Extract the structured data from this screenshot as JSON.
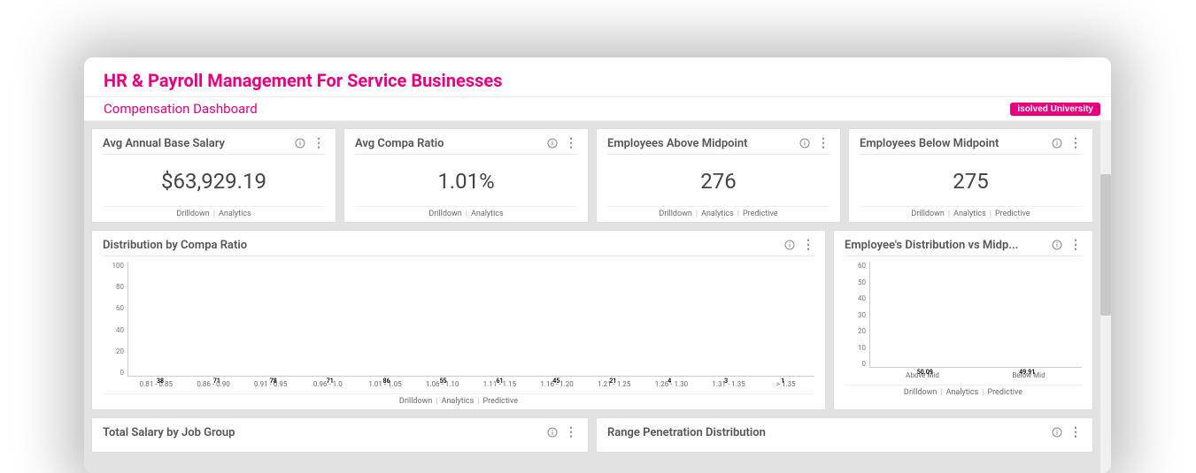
{
  "page_title": "HR & Payroll Management For Service Businesses",
  "sub_title": "Compensation Dashboard",
  "badge": "isolved University",
  "kpi_cards": [
    {
      "title": "Avg Annual Base Salary",
      "value": "$63,929.19",
      "links": [
        "Drilldown",
        "Analytics"
      ]
    },
    {
      "title": "Avg Compa Ratio",
      "value": "1.01%",
      "links": [
        "Drilldown",
        "Analytics"
      ]
    },
    {
      "title": "Employees Above Midpoint",
      "value": "276",
      "links": [
        "Drilldown",
        "Analytics",
        "Predictive"
      ]
    },
    {
      "title": "Employees Below Midpoint",
      "value": "275",
      "links": [
        "Drilldown",
        "Analytics",
        "Predictive"
      ]
    }
  ],
  "compa_chart": {
    "title": "Distribution by Compa Ratio",
    "ymax": 100,
    "yticks": [
      "100",
      "80",
      "60",
      "40",
      "20",
      "0"
    ],
    "categories": [
      "0.81 - 0.85",
      "0.86 - 0.90",
      "0.91 - 0.95",
      "0.96 - 1.0",
      "1.01 - 1.05",
      "1.06 - 1.10",
      "1.11 - 1.15",
      "1.16 - 1.20",
      "1.21 - 1.25",
      "1.26 - 1.30",
      "1.31 - 1.35",
      "> 1.35"
    ],
    "values": [
      38,
      71,
      78,
      71,
      86,
      55,
      61,
      45,
      21,
      4,
      3,
      1
    ],
    "value_labels": [
      "38",
      "71",
      "78",
      "71",
      "86",
      "55",
      "61",
      "45",
      "21",
      "4",
      "3",
      "1"
    ],
    "colors": [
      "#1f3ea8",
      "#c98b0a",
      "#0f8ba3",
      "#e6007e",
      "#b8b8b8",
      "#0f8ba3",
      "#8a6aa8",
      "#0f8ba3",
      "#b86b1f",
      "#2a2a4a",
      "#2a2a4a",
      "#6a6a6a"
    ],
    "foot_links": [
      "Drilldown",
      "Analytics",
      "Predictive"
    ]
  },
  "midpoint_chart": {
    "title": "Employee's Distribution vs Midp...",
    "ymax": 60,
    "yticks": [
      "60",
      "50",
      "40",
      "30",
      "20",
      "10",
      "0"
    ],
    "categories": [
      "Above Mid",
      "Below Mid"
    ],
    "values": [
      50.09,
      49.91
    ],
    "value_labels": [
      "50.09",
      "49.91"
    ],
    "colors": [
      "#1f3ea8",
      "#c98b0a"
    ],
    "foot_links": [
      "Drilldown",
      "Analytics",
      "Predictive"
    ]
  },
  "bottom_left_title": "Total Salary by Job Group",
  "bottom_right_title": "Range Penetration Distribution",
  "accent_color": "#e6007e"
}
